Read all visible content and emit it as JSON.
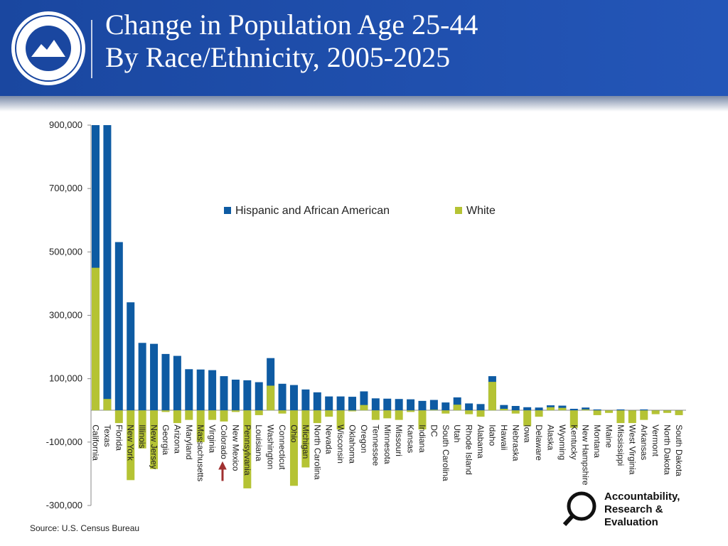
{
  "chart_data": {
    "type": "bar",
    "title": "Change in Population Age 25-44 By Race/Ethnicity, 2005-2025",
    "source": "Source:  U.S. Census Bureau",
    "logo_text": [
      "Accountability,",
      "Research &",
      "Evaluation"
    ],
    "categories": [
      "California",
      "Texas",
      "Florida",
      "New York",
      "Illinois",
      "New Jersey",
      "Georgia",
      "Arizona",
      "Maryland",
      "Massachusetts",
      "Virginia",
      "Colorado",
      "New Mexico",
      "Pennsylvania",
      "Louisiana",
      "Washington",
      "Connecticut",
      "Ohio",
      "Michigan",
      "North Carolina",
      "Nevada",
      "Wisconsin",
      "Oklahoma",
      "Oregon",
      "Tennessee",
      "Minnesota",
      "Missouri",
      "Kansas",
      "Indiana",
      "DC",
      "South Carolina",
      "Utah",
      "Rhode Island",
      "Alabama",
      "Idaho",
      "Hawaii",
      "Nebraska",
      "Iowa",
      "Delaware",
      "Alaska",
      "Wyoming",
      "Kentucky",
      "New Hampshire",
      "Montana",
      "Maine",
      "Mississippi",
      "West Virginia",
      "Arkansas",
      "Vermont",
      "North Dakota",
      "South Dakota"
    ],
    "series": [
      {
        "name": "Hispanic and African American",
        "color": "#0e5ba3",
        "values": [
          900000,
          900000,
          531000,
          341000,
          213000,
          210000,
          178000,
          172000,
          130000,
          129000,
          127000,
          108000,
          97000,
          95000,
          89000,
          165000,
          84000,
          80000,
          66000,
          57000,
          44000,
          44000,
          43000,
          60000,
          38000,
          37000,
          36000,
          35000,
          30000,
          33000,
          25000,
          41000,
          22000,
          20000,
          108000,
          17000,
          14000,
          10000,
          9000,
          16000,
          15000,
          5000,
          9000,
          3000,
          -3000,
          3000,
          -5000,
          3000,
          -3000,
          -3000,
          -3000
        ]
      },
      {
        "name": "White",
        "color": "#b5c334",
        "values": [
          450000,
          36000,
          -40000,
          -220000,
          -120000,
          -185000,
          -5000,
          -40000,
          -30000,
          -100000,
          -30000,
          -35000,
          -5000,
          -246000,
          -15000,
          78000,
          -10000,
          -238000,
          -180000,
          -40000,
          -20000,
          -60000,
          -3000,
          17000,
          -30000,
          -25000,
          -30000,
          -5000,
          -60000,
          2000,
          -10000,
          18000,
          -12000,
          -20000,
          90000,
          5000,
          -10000,
          -50000,
          -20000,
          10000,
          8000,
          -55000,
          3000,
          -15000,
          -8000,
          -40000,
          -40000,
          -30000,
          -12000,
          -8000,
          -15000
        ]
      }
    ],
    "ylim": [
      -300000,
      900000
    ],
    "yticks": [
      {
        "value": -300000,
        "label": "-300,000"
      },
      {
        "value": -100000,
        "label": "-100,000"
      },
      {
        "value": 100000,
        "label": "100,000"
      },
      {
        "value": 300000,
        "label": "300,000"
      },
      {
        "value": 500000,
        "label": "500,000"
      },
      {
        "value": 700000,
        "label": "700,000"
      },
      {
        "value": 900000,
        "label": "900,000"
      }
    ],
    "grid": false
  }
}
